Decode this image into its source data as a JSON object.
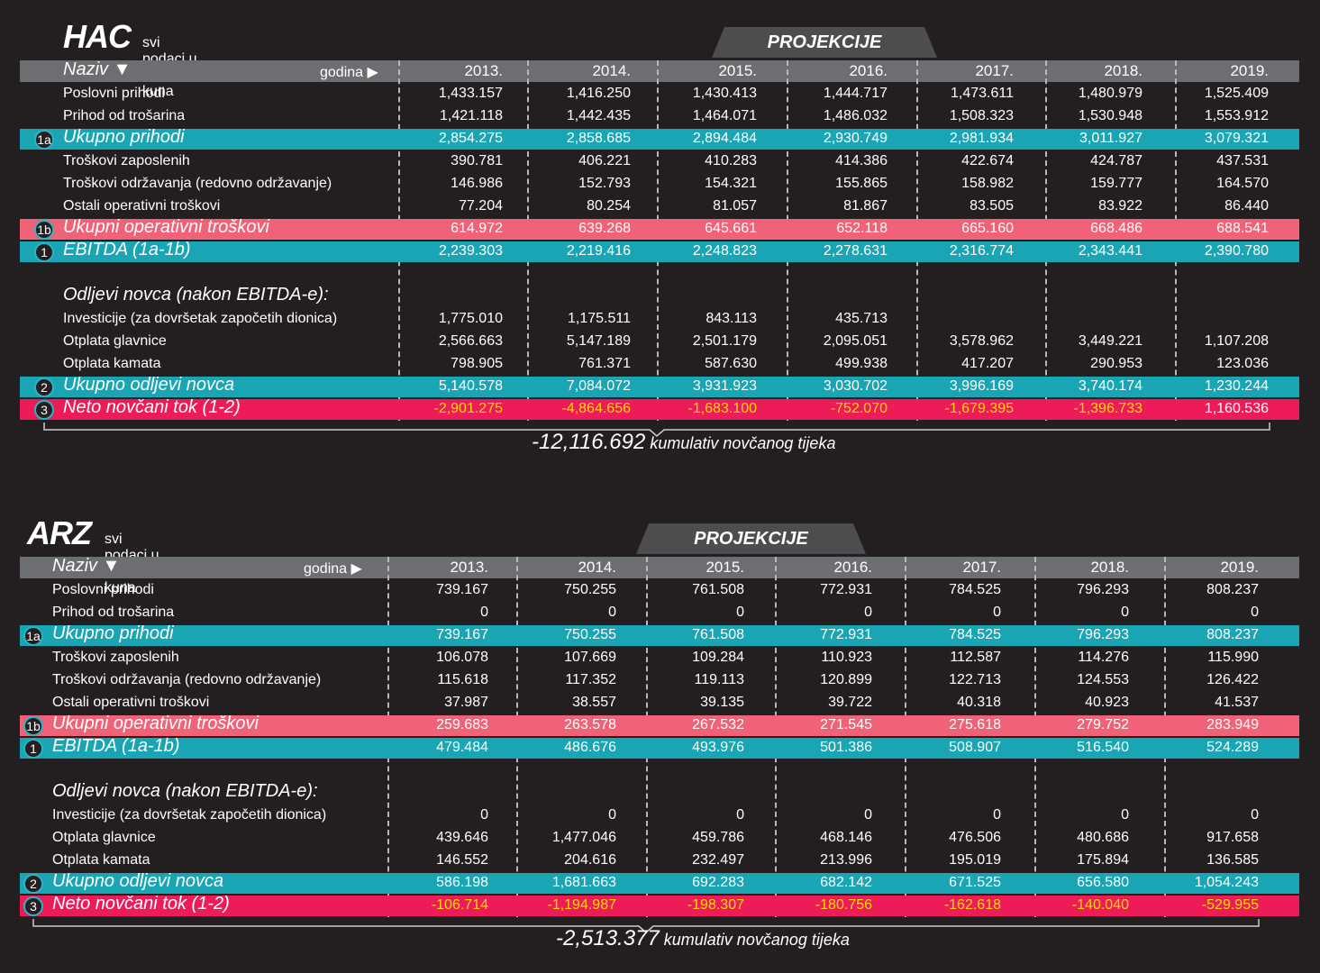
{
  "tables": [
    {
      "name": "HAC",
      "subtitle": "svi podaci u tisućama kuna",
      "projekcije": "PROJEKCIJE",
      "naziv": "Naziv ▼",
      "godina": "godina ▶",
      "years": [
        "2013.",
        "2014.",
        "2015.",
        "2016.",
        "2017.",
        "2018.",
        "2019."
      ],
      "rows": [
        {
          "label": "Poslovni prihodi",
          "values": [
            "1,433.157",
            "1,416.250",
            "1,430.413",
            "1,444.717",
            "1,473.611",
            "1,480.979",
            "1,525.409"
          ]
        },
        {
          "label": "Prihod od trošarina",
          "values": [
            "1,421.118",
            "1,442.435",
            "1,464.071",
            "1,486.032",
            "1,508.323",
            "1,530.948",
            "1,553.912"
          ]
        },
        {
          "label": "Ukupno prihodi",
          "badge": "1a",
          "style": "cyan",
          "values": [
            "2,854.275",
            "2,858.685",
            "2,894.484",
            "2,930.749",
            "2,981.934",
            "3,011.927",
            "3,079.321"
          ]
        },
        {
          "label": "Troškovi zaposlenih",
          "values": [
            "390.781",
            "406.221",
            "410.283",
            "414.386",
            "422.674",
            "424.787",
            "437.531"
          ]
        },
        {
          "label": "Troškovi održavanja (redovno održavanje)",
          "values": [
            "146.986",
            "152.793",
            "154.321",
            "155.865",
            "158.982",
            "159.777",
            "164.570"
          ]
        },
        {
          "label": "Ostali operativni troškovi",
          "values": [
            "77.204",
            "80.254",
            "81.057",
            "81.867",
            "83.505",
            "83.922",
            "86.440"
          ]
        },
        {
          "label": "Ukupni operativni troškovi",
          "badge": "1b",
          "style": "pink",
          "values": [
            "614.972",
            "639.268",
            "645.661",
            "652.118",
            "665.160",
            "668.486",
            "688.541"
          ]
        },
        {
          "label": "EBITDA (1a-1b)",
          "badge": "1",
          "style": "cyan",
          "values": [
            "2,239.303",
            "2,219.416",
            "2,248.823",
            "2,278.631",
            "2,316.774",
            "2,343.441",
            "2,390.780"
          ]
        },
        {
          "label": "",
          "values": [
            "",
            "",
            "",
            "",
            "",
            "",
            ""
          ]
        },
        {
          "label": "Odljevi novca (nakon EBITDA-e):",
          "style": "section",
          "values": [
            "",
            "",
            "",
            "",
            "",
            "",
            ""
          ]
        },
        {
          "label": "Investicije (za dovršetak započetih dionica)",
          "values": [
            "1,775.010",
            "1,175.511",
            "843.113",
            "435.713",
            "",
            "",
            ""
          ]
        },
        {
          "label": "Otplata glavnice",
          "values": [
            "2,566.663",
            "5,147.189",
            "2,501.179",
            "2,095.051",
            "3,578.962",
            "3,449.221",
            "1,107.208"
          ]
        },
        {
          "label": "Otplata kamata",
          "values": [
            "798.905",
            "761.371",
            "587.630",
            "499.938",
            "417.207",
            "290.953",
            "123.036"
          ]
        },
        {
          "label": "Ukupno odljevi novca",
          "badge": "2",
          "style": "cyan",
          "values": [
            "5,140.578",
            "7,084.072",
            "3,931.923",
            "3,030.702",
            "3,996.169",
            "3,740.174",
            "1,230.244"
          ]
        },
        {
          "label": "Neto novčani tok (1-2)",
          "badge": "3",
          "style": "red",
          "values": [
            "-2,901.275",
            "-4,864.656",
            "-1,683.100",
            "-752.070",
            "-1,679.395",
            "-1,396.733",
            "1,160.536"
          ]
        }
      ],
      "cumulative_value": "-12,116.692",
      "cumulative_label": "kumulativ novčanog tijeka"
    },
    {
      "name": "ARZ",
      "subtitle": "svi podaci u tisućama kuna",
      "projekcije": "PROJEKCIJE",
      "naziv": "Naziv ▼",
      "godina": "godina ▶",
      "years": [
        "2013.",
        "2014.",
        "2015.",
        "2016.",
        "2017.",
        "2018.",
        "2019."
      ],
      "rows": [
        {
          "label": "Poslovni prihodi",
          "values": [
            "739.167",
            "750.255",
            "761.508",
            "772.931",
            "784.525",
            "796.293",
            "808.237"
          ]
        },
        {
          "label": "Prihod od trošarina",
          "values": [
            "0",
            "0",
            "0",
            "0",
            "0",
            "0",
            "0"
          ]
        },
        {
          "label": "Ukupno prihodi",
          "badge": "1a",
          "style": "cyan",
          "values": [
            "739.167",
            "750.255",
            "761.508",
            "772.931",
            "784.525",
            "796.293",
            "808.237"
          ]
        },
        {
          "label": "Troškovi zaposlenih",
          "values": [
            "106.078",
            "107.669",
            "109.284",
            "110.923",
            "112.587",
            "114.276",
            "115.990"
          ]
        },
        {
          "label": "Troškovi održavanja (redovno održavanje)",
          "values": [
            "115.618",
            "117.352",
            "119.113",
            "120.899",
            "122.713",
            "124.553",
            "126.422"
          ]
        },
        {
          "label": "Ostali operativni troškovi",
          "values": [
            "37.987",
            "38.557",
            "39.135",
            "39.722",
            "40.318",
            "40.923",
            "41.537"
          ]
        },
        {
          "label": "Ukupni operativni troškovi",
          "badge": "1b",
          "style": "pink",
          "values": [
            "259.683",
            "263.578",
            "267.532",
            "271.545",
            "275.618",
            "279.752",
            "283.949"
          ]
        },
        {
          "label": "EBITDA (1a-1b)",
          "badge": "1",
          "style": "cyan",
          "values": [
            "479.484",
            "486.676",
            "493.976",
            "501.386",
            "508.907",
            "516.540",
            "524.289"
          ]
        },
        {
          "label": "",
          "values": [
            "",
            "",
            "",
            "",
            "",
            "",
            ""
          ]
        },
        {
          "label": "Odljevi novca (nakon EBITDA-e):",
          "style": "section",
          "values": [
            "",
            "",
            "",
            "",
            "",
            "",
            ""
          ]
        },
        {
          "label": "Investicije (za dovršetak započetih dionica)",
          "values": [
            "0",
            "0",
            "0",
            "0",
            "0",
            "0",
            "0"
          ]
        },
        {
          "label": "Otplata glavnice",
          "values": [
            "439.646",
            "1,477.046",
            "459.786",
            "468.146",
            "476.506",
            "480.686",
            "917.658"
          ]
        },
        {
          "label": "Otplata kamata",
          "values": [
            "146.552",
            "204.616",
            "232.497",
            "213.996",
            "195.019",
            "175.894",
            "136.585"
          ]
        },
        {
          "label": "Ukupno odljevi novca",
          "badge": "2",
          "style": "cyan",
          "values": [
            "586.198",
            "1,681.663",
            "692.283",
            "682.142",
            "671.525",
            "656.580",
            "1,054.243"
          ]
        },
        {
          "label": "Neto novčani tok (1-2)",
          "badge": "3",
          "style": "red",
          "values": [
            "-106.714",
            "-1,194.987",
            "-198.307",
            "-180.756",
            "-162.618",
            "-140.040",
            "-529.955"
          ]
        }
      ],
      "cumulative_value": "-2,513.377",
      "cumulative_label": "kumulativ novčanog tijeka"
    }
  ]
}
